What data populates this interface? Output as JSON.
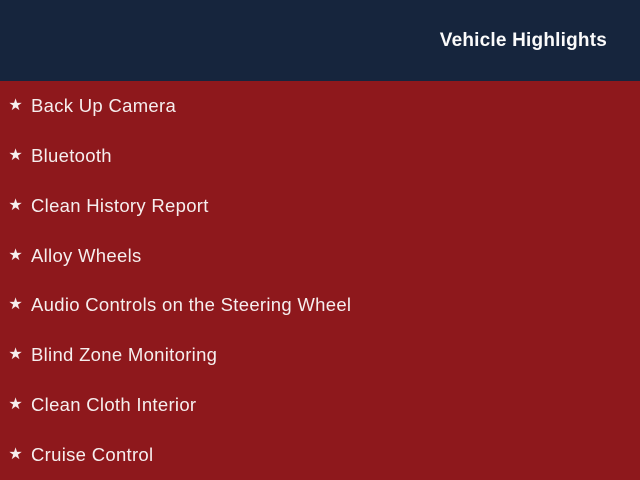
{
  "header": {
    "title": "Vehicle Highlights",
    "background_color": "#16253d",
    "text_color": "#fbfbfb"
  },
  "highlights": {
    "background_color": "#8e181c",
    "text_color": "#f6eeee",
    "star_icon": "★",
    "items": [
      "Back Up Camera",
      "Bluetooth",
      "Clean History Report",
      "Alloy Wheels",
      "Audio Controls on the Steering Wheel",
      "Blind Zone Monitoring",
      "Clean Cloth Interior",
      "Cruise Control"
    ]
  }
}
